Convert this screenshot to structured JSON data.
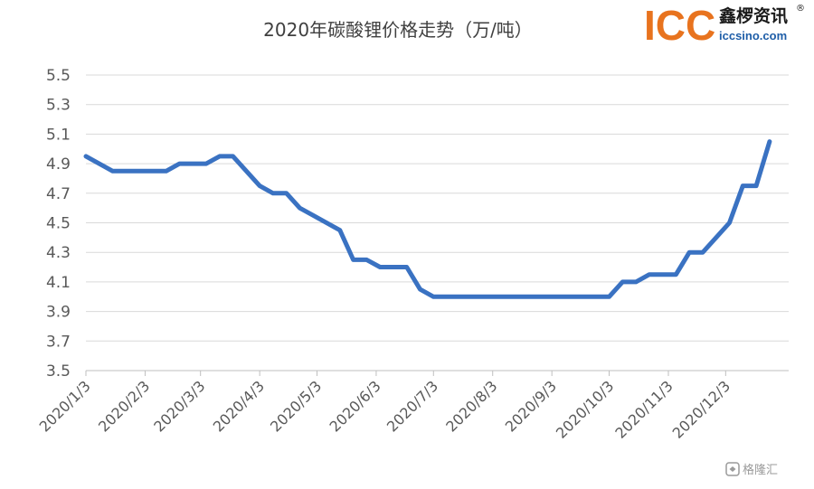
{
  "colors": {
    "series": "#3a72c2",
    "logo_orange": "#e8731e",
    "logo_blue": "#1f5ea8"
  },
  "logo": {
    "mark": "ICC",
    "cn_name": "鑫椤资讯",
    "url": "iccsino.com",
    "registered": "®"
  },
  "watermark": {
    "icon": "gelonghui-logo-icon",
    "text": "格隆汇"
  },
  "chart_data": {
    "type": "line",
    "title": "2020年碳酸锂价格走势（万/吨）",
    "xlabel": "",
    "ylabel": "",
    "ylim": [
      3.5,
      5.5
    ],
    "yticks": [
      "5.5",
      "5.3",
      "5.1",
      "4.9",
      "4.7",
      "4.5",
      "4.3",
      "4.1",
      "3.9",
      "3.7",
      "3.5"
    ],
    "xticks": [
      "2020/1/3",
      "2020/2/3",
      "2020/3/3",
      "2020/4/3",
      "2020/5/3",
      "2020/6/3",
      "2020/7/3",
      "2020/8/3",
      "2020/9/3",
      "2020/10/3",
      "2020/11/3",
      "2020/12/3"
    ],
    "grid": "horizontal",
    "legend": "none",
    "series": [
      {
        "x": [
          "2020/1/3",
          "2020/1/17",
          "2020/1/31",
          "2020/2/14",
          "2020/2/21",
          "2020/3/6",
          "2020/3/13",
          "2020/3/20",
          "2020/4/3",
          "2020/4/10",
          "2020/4/17",
          "2020/4/24",
          "2020/5/1",
          "2020/5/15",
          "2020/5/22",
          "2020/5/29",
          "2020/6/5",
          "2020/6/12",
          "2020/6/19",
          "2020/6/26",
          "2020/7/3",
          "2020/8/3",
          "2020/9/3",
          "2020/10/3",
          "2020/10/10",
          "2020/10/17",
          "2020/10/24",
          "2020/11/7",
          "2020/11/14",
          "2020/11/21",
          "2020/12/5",
          "2020/12/12",
          "2020/12/19",
          "2020/12/26"
        ],
        "values": [
          4.95,
          4.85,
          4.85,
          4.85,
          4.9,
          4.9,
          4.95,
          4.95,
          4.75,
          4.7,
          4.7,
          4.6,
          4.55,
          4.45,
          4.25,
          4.25,
          4.2,
          4.2,
          4.2,
          4.05,
          4.0,
          4.0,
          4.0,
          4.0,
          4.1,
          4.1,
          4.15,
          4.15,
          4.3,
          4.3,
          4.5,
          4.75,
          4.75,
          5.05
        ]
      }
    ]
  }
}
